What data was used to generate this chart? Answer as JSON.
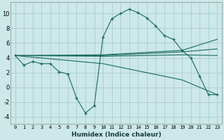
{
  "bg_color": "#cce8e8",
  "grid_color": "#aacccc",
  "line_color": "#1a6a5a",
  "xlabel": "Humidex (Indice chaleur)",
  "xlim": [
    -0.5,
    23.5
  ],
  "ylim": [
    -5,
    11.5
  ],
  "xticks": [
    0,
    1,
    2,
    3,
    4,
    5,
    6,
    7,
    8,
    9,
    10,
    11,
    12,
    13,
    14,
    15,
    16,
    17,
    18,
    19,
    20,
    21,
    22,
    23
  ],
  "yticks": [
    -4,
    -2,
    0,
    2,
    4,
    6,
    8,
    10
  ],
  "curve_x": [
    0,
    1,
    2,
    3,
    4,
    5,
    6,
    7,
    8,
    9,
    10,
    11,
    12,
    13,
    14,
    15,
    16,
    17,
    18,
    19,
    20,
    21,
    22,
    23
  ],
  "curve_y": [
    4.3,
    3.0,
    3.5,
    3.2,
    3.2,
    2.1,
    1.8,
    -1.5,
    -3.5,
    -2.5,
    6.8,
    9.3,
    10.0,
    10.6,
    10.1,
    9.4,
    8.3,
    7.0,
    6.5,
    5.0,
    4.0,
    1.5,
    -1.0,
    -1.0
  ],
  "line1_x": [
    0,
    10,
    19,
    23
  ],
  "line1_y": [
    4.3,
    4.4,
    5.0,
    6.5
  ],
  "line2_x": [
    0,
    10,
    19,
    23
  ],
  "line2_y": [
    4.3,
    4.3,
    4.8,
    5.2
  ],
  "line3_x": [
    0,
    10,
    19,
    23
  ],
  "line3_y": [
    4.3,
    4.2,
    4.4,
    4.3
  ],
  "line4_x": [
    0,
    10,
    19,
    23
  ],
  "line4_y": [
    4.3,
    3.2,
    1.0,
    -1.0
  ]
}
